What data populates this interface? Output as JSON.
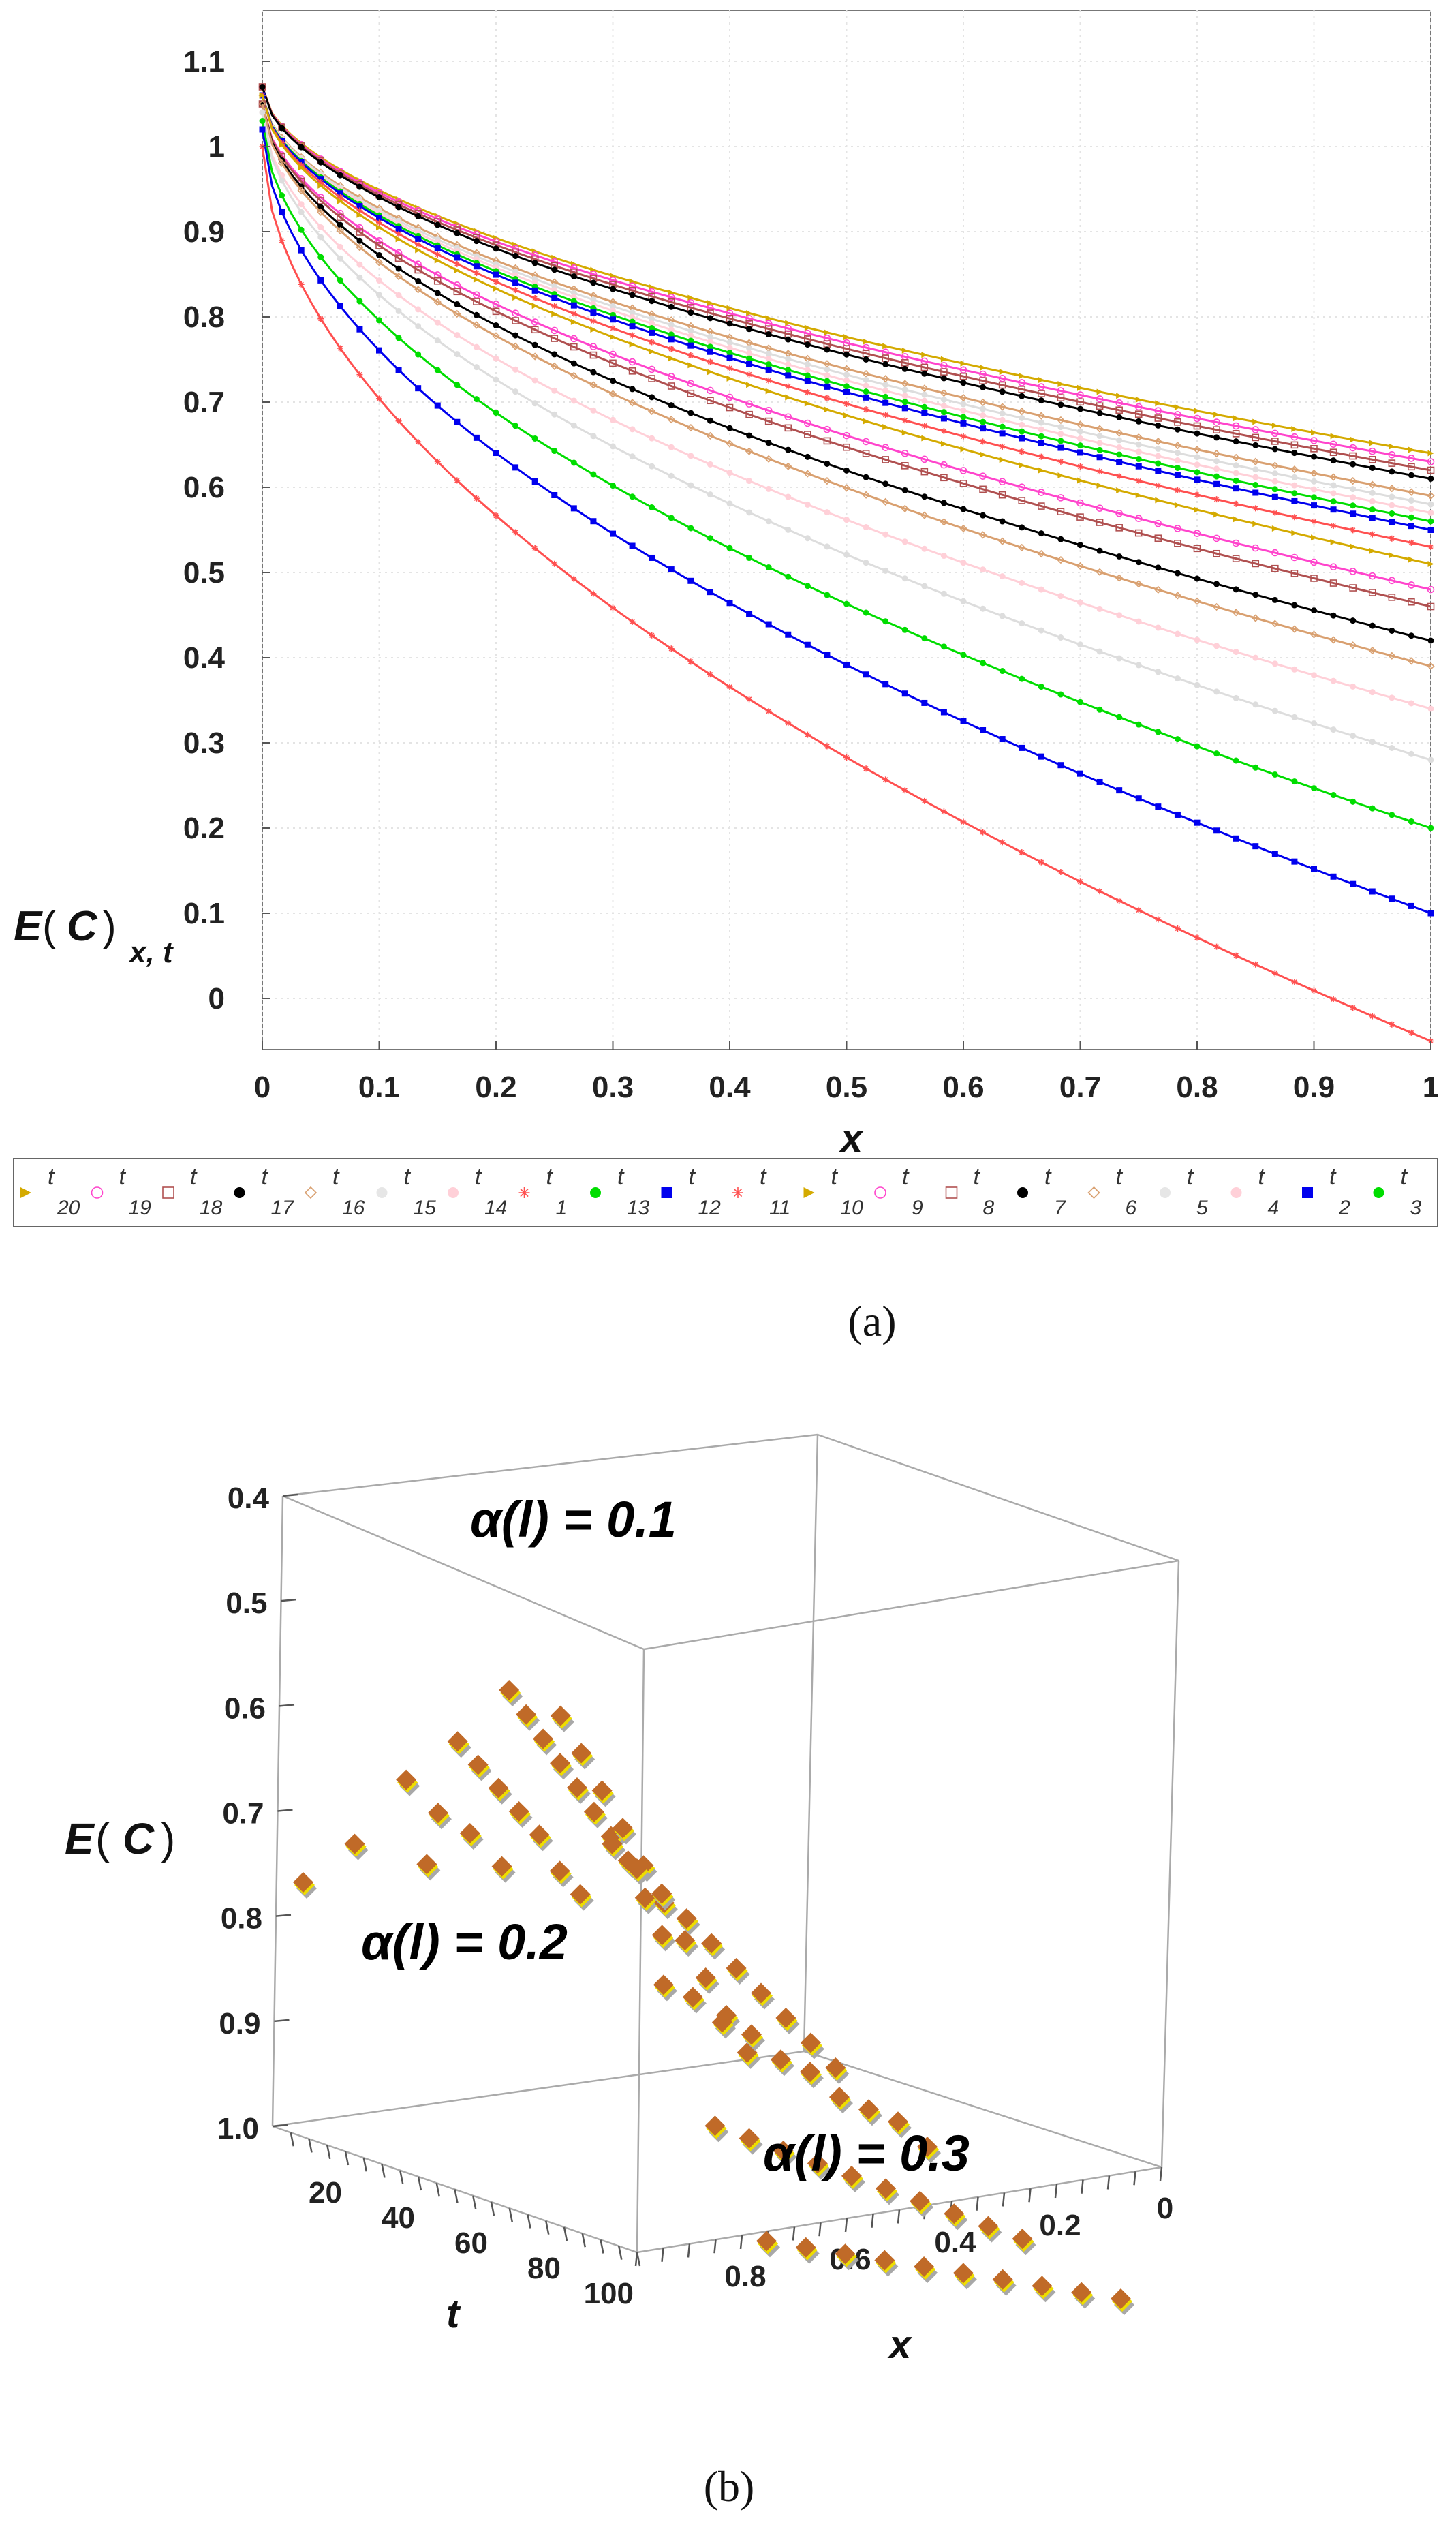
{
  "chart_data": [
    {
      "panel": "a",
      "caption": "(a)",
      "type": "scatter",
      "title": "",
      "xlabel": "x",
      "ylabel_main": "E",
      "ylabel_paren_open": "(",
      "ylabel_var": "C",
      "ylabel_paren_close": ")",
      "ylabel_subscript": "x, t",
      "xlim": [
        0,
        1
      ],
      "ylim": [
        -0.06,
        1.16
      ],
      "xticks": [
        "0",
        "0.1",
        "0.2",
        "0.3",
        "0.4",
        "0.5",
        "0.6",
        "0.7",
        "0.8",
        "0.9",
        "1"
      ],
      "yticks": [
        "0",
        "0.1",
        "0.2",
        "0.3",
        "0.4",
        "0.5",
        "0.6",
        "0.7",
        "0.8",
        "0.9",
        "1",
        "1.1"
      ],
      "grid": true,
      "legend_position": "bottom",
      "legend": [
        {
          "sub": "20",
          "color": "#d4aa00",
          "marker": "arrow"
        },
        {
          "sub": "19",
          "color": "#ff44cc",
          "marker": "circle-open"
        },
        {
          "sub": "18",
          "color": "#b05050",
          "marker": "square-open"
        },
        {
          "sub": "17",
          "color": "#000000",
          "marker": "dot"
        },
        {
          "sub": "16",
          "color": "#d9a070",
          "marker": "diamond-open"
        },
        {
          "sub": "15",
          "color": "#e6e6e6",
          "marker": "dot"
        },
        {
          "sub": "14",
          "color": "#ffd0d8",
          "marker": "dot"
        },
        {
          "sub": "1",
          "color": "#ff5050",
          "marker": "asterisk"
        },
        {
          "sub": "13",
          "color": "#00dd00",
          "marker": "dot"
        },
        {
          "sub": "12",
          "color": "#0000ee",
          "marker": "square"
        },
        {
          "sub": "11",
          "color": "#ff5050",
          "marker": "asterisk"
        },
        {
          "sub": "10",
          "color": "#d4aa00",
          "marker": "arrow"
        },
        {
          "sub": "9",
          "color": "#ff44cc",
          "marker": "circle-open"
        },
        {
          "sub": "8",
          "color": "#b05050",
          "marker": "square-open"
        },
        {
          "sub": "7",
          "color": "#000000",
          "marker": "dot"
        },
        {
          "sub": "6",
          "color": "#d9a070",
          "marker": "diamond-open"
        },
        {
          "sub": "5",
          "color": "#e6e6e6",
          "marker": "dot"
        },
        {
          "sub": "4",
          "color": "#ffd0d8",
          "marker": "dot"
        },
        {
          "sub": "2",
          "color": "#0000ee",
          "marker": "square"
        },
        {
          "sub": "3",
          "color": "#00dd00",
          "marker": "dot"
        }
      ],
      "series": [
        {
          "name": "t1",
          "color": "#ff5050",
          "y_start": 1.0,
          "y_end": -0.05
        },
        {
          "name": "t2",
          "color": "#0000ee",
          "y_start": 1.02,
          "y_end": 0.1
        },
        {
          "name": "t3",
          "color": "#00dd00",
          "y_start": 1.03,
          "y_end": 0.2
        },
        {
          "name": "t4",
          "color": "#dddddd",
          "y_start": 1.04,
          "y_end": 0.28
        },
        {
          "name": "t5",
          "color": "#ffd0d8",
          "y_start": 1.04,
          "y_end": 0.34
        },
        {
          "name": "t6",
          "color": "#d9a070",
          "y_start": 1.05,
          "y_end": 0.39
        },
        {
          "name": "t7",
          "color": "#000000",
          "y_start": 1.05,
          "y_end": 0.42
        },
        {
          "name": "t8",
          "color": "#b05050",
          "y_start": 1.05,
          "y_end": 0.46
        },
        {
          "name": "t9",
          "color": "#ff44cc",
          "y_start": 1.05,
          "y_end": 0.48
        },
        {
          "name": "t10",
          "color": "#d4aa00",
          "y_start": 1.06,
          "y_end": 0.51
        },
        {
          "name": "t11",
          "color": "#ff5050",
          "y_start": 1.06,
          "y_end": 0.53
        },
        {
          "name": "t12",
          "color": "#0000ee",
          "y_start": 1.06,
          "y_end": 0.55
        },
        {
          "name": "t13",
          "color": "#00dd00",
          "y_start": 1.06,
          "y_end": 0.56
        },
        {
          "name": "t14",
          "color": "#ffd0d8",
          "y_start": 1.06,
          "y_end": 0.57
        },
        {
          "name": "t15",
          "color": "#dddddd",
          "y_start": 1.06,
          "y_end": 0.58
        },
        {
          "name": "t16",
          "color": "#d9a070",
          "y_start": 1.06,
          "y_end": 0.59
        },
        {
          "name": "t17",
          "color": "#000000",
          "y_start": 1.07,
          "y_end": 0.61
        },
        {
          "name": "t18",
          "color": "#b05050",
          "y_start": 1.07,
          "y_end": 0.62
        },
        {
          "name": "t19",
          "color": "#ff44cc",
          "y_start": 1.07,
          "y_end": 0.63
        },
        {
          "name": "t20",
          "color": "#d4aa00",
          "y_start": 1.07,
          "y_end": 0.64
        }
      ]
    },
    {
      "panel": "b",
      "caption": "(b)",
      "type": "scatter3d",
      "zlabel_main": "E",
      "zlabel_paren_open": "(",
      "zlabel_var": "C",
      "zlabel_paren_close": ")",
      "tlabel": "t",
      "xlabel": "x",
      "zticks": [
        "0.4",
        "0.5",
        "0.6",
        "0.7",
        "0.8",
        "0.9",
        "1.0"
      ],
      "tticks": [
        "20",
        "40",
        "60",
        "80",
        "100"
      ],
      "xticks": [
        "0.8",
        "0.6",
        "0.4",
        "0.2",
        "0"
      ],
      "annotations": [
        {
          "text": "α(l) = 0.1",
          "color": "#b0604a"
        },
        {
          "text": "α(l) = 0.2",
          "color": "#f2ee00"
        },
        {
          "text": "α(l) = 0.3",
          "color": "#8a8a8a"
        }
      ],
      "marker_colors": {
        "front": "#c06a28",
        "middle": "#eedd00",
        "back": "#a8a8a8"
      },
      "series": [
        {
          "t": 10,
          "E": [
            0.65
          ]
        },
        {
          "t": 20,
          "E": [
            0.62,
            0.65
          ]
        },
        {
          "t": 30,
          "E": [
            0.57,
            0.6,
            0.62,
            0.65
          ]
        },
        {
          "t": 40,
          "E": [
            0.54,
            0.56,
            0.58,
            0.6,
            0.62,
            0.65,
            0.67
          ]
        },
        {
          "t": 50,
          "E": [
            0.5,
            0.52,
            0.54,
            0.56,
            0.58,
            0.6,
            0.62,
            0.64,
            0.67,
            0.7
          ]
        },
        {
          "t": 60,
          "E": [
            0.52,
            0.55,
            0.58,
            0.61,
            0.64,
            0.67,
            0.7,
            0.73,
            0.76,
            0.79
          ]
        },
        {
          "t": 70,
          "E": [
            0.62,
            0.64,
            0.66,
            0.68,
            0.7,
            0.72,
            0.74,
            0.76,
            0.78,
            0.8
          ]
        },
        {
          "t": 80,
          "E": [
            0.73,
            0.74,
            0.76,
            0.77,
            0.79,
            0.8,
            0.82,
            0.83,
            0.84,
            0.86
          ]
        },
        {
          "t": 90,
          "E": [
            0.84,
            0.85,
            0.86,
            0.87,
            0.88,
            0.89,
            0.9,
            0.91,
            0.92,
            0.93
          ]
        },
        {
          "t": 100,
          "E": [
            0.93,
            0.935,
            0.94,
            0.945,
            0.95,
            0.955,
            0.96,
            0.965,
            0.97,
            0.975
          ]
        }
      ]
    }
  ]
}
